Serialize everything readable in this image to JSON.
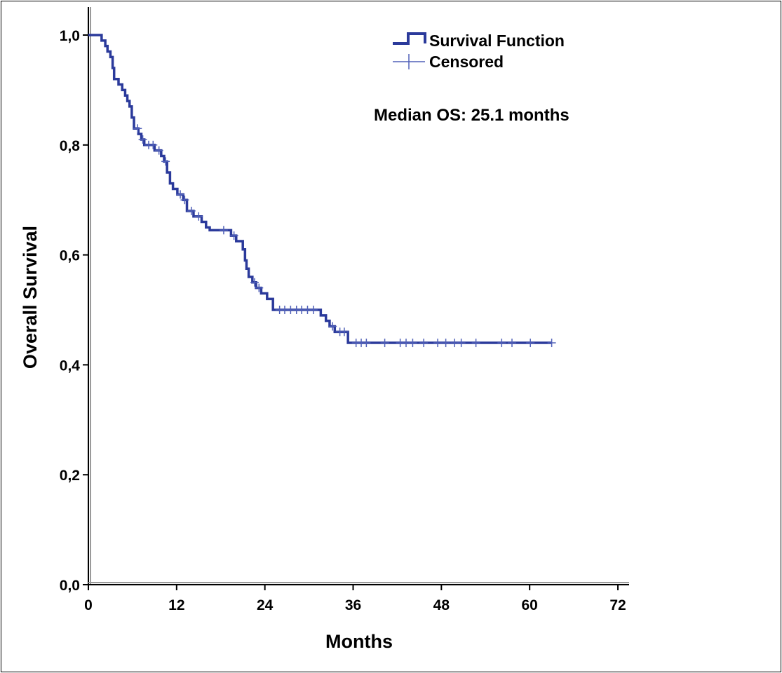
{
  "chart_data": {
    "type": "line",
    "title": "",
    "xlabel": "Months",
    "ylabel": "Overall Survival",
    "xlim": [
      0,
      72
    ],
    "ylim": [
      0.0,
      1.0
    ],
    "x_ticks": [
      0,
      12,
      24,
      36,
      48,
      60,
      72
    ],
    "y_ticks": [
      0.0,
      0.2,
      0.4,
      0.6,
      0.8,
      1.0
    ],
    "x_tick_labels": [
      "0",
      "12",
      "24",
      "36",
      "48",
      "60",
      "72"
    ],
    "y_tick_labels": [
      "0,0",
      "0,2",
      "0,4",
      "0,6",
      "0,8",
      "1,0"
    ],
    "grid": false,
    "legend_position": "top-right",
    "legend": {
      "survival_label": "Survival Function",
      "censored_label": "Censored"
    },
    "annotation": "Median OS: 25.1 months",
    "colors": {
      "line": "#2B3A9B",
      "censor": "#5060B8"
    },
    "series": [
      {
        "name": "Survival Function",
        "steps": [
          [
            0,
            1.0
          ],
          [
            1.8,
            0.99
          ],
          [
            2.3,
            0.98
          ],
          [
            2.6,
            0.97
          ],
          [
            3.0,
            0.96
          ],
          [
            3.3,
            0.94
          ],
          [
            3.5,
            0.92
          ],
          [
            4.1,
            0.91
          ],
          [
            4.6,
            0.9
          ],
          [
            5.0,
            0.89
          ],
          [
            5.3,
            0.88
          ],
          [
            5.6,
            0.87
          ],
          [
            5.9,
            0.85
          ],
          [
            6.2,
            0.83
          ],
          [
            6.8,
            0.82
          ],
          [
            7.2,
            0.81
          ],
          [
            7.6,
            0.8
          ],
          [
            9.0,
            0.79
          ],
          [
            9.9,
            0.78
          ],
          [
            10.3,
            0.77
          ],
          [
            10.7,
            0.75
          ],
          [
            11.1,
            0.73
          ],
          [
            11.5,
            0.72
          ],
          [
            12.1,
            0.71
          ],
          [
            12.9,
            0.7
          ],
          [
            13.4,
            0.68
          ],
          [
            14.3,
            0.67
          ],
          [
            15.4,
            0.66
          ],
          [
            16.0,
            0.65
          ],
          [
            16.5,
            0.645
          ],
          [
            19.4,
            0.635
          ],
          [
            20.1,
            0.625
          ],
          [
            21.0,
            0.61
          ],
          [
            21.3,
            0.59
          ],
          [
            21.5,
            0.575
          ],
          [
            21.8,
            0.56
          ],
          [
            22.3,
            0.55
          ],
          [
            22.8,
            0.54
          ],
          [
            23.5,
            0.53
          ],
          [
            24.3,
            0.52
          ],
          [
            25.1,
            0.5
          ],
          [
            31.6,
            0.49
          ],
          [
            32.3,
            0.48
          ],
          [
            32.8,
            0.47
          ],
          [
            33.5,
            0.46
          ],
          [
            35.3,
            0.44
          ]
        ],
        "end_x": 63.0
      },
      {
        "name": "Censored",
        "points": [
          [
            6.7,
            0.83
          ],
          [
            7.4,
            0.81
          ],
          [
            8.2,
            0.8
          ],
          [
            8.8,
            0.8
          ],
          [
            9.6,
            0.79
          ],
          [
            10.5,
            0.77
          ],
          [
            12.5,
            0.71
          ],
          [
            13.1,
            0.7
          ],
          [
            14.0,
            0.68
          ],
          [
            15.0,
            0.67
          ],
          [
            18.4,
            0.645
          ],
          [
            19.8,
            0.635
          ],
          [
            22.6,
            0.55
          ],
          [
            23.2,
            0.54
          ],
          [
            26.0,
            0.5
          ],
          [
            26.7,
            0.5
          ],
          [
            27.5,
            0.5
          ],
          [
            28.3,
            0.5
          ],
          [
            29.0,
            0.5
          ],
          [
            29.8,
            0.5
          ],
          [
            30.6,
            0.5
          ],
          [
            33.2,
            0.47
          ],
          [
            34.2,
            0.46
          ],
          [
            34.8,
            0.46
          ],
          [
            36.4,
            0.44
          ],
          [
            37.1,
            0.44
          ],
          [
            37.8,
            0.44
          ],
          [
            40.3,
            0.44
          ],
          [
            42.4,
            0.44
          ],
          [
            43.2,
            0.44
          ],
          [
            44.1,
            0.44
          ],
          [
            45.6,
            0.44
          ],
          [
            47.5,
            0.44
          ],
          [
            48.6,
            0.44
          ],
          [
            49.8,
            0.44
          ],
          [
            50.7,
            0.44
          ],
          [
            52.7,
            0.44
          ],
          [
            56.2,
            0.44
          ],
          [
            57.6,
            0.44
          ],
          [
            60.1,
            0.44
          ],
          [
            63.0,
            0.44
          ]
        ]
      }
    ]
  }
}
